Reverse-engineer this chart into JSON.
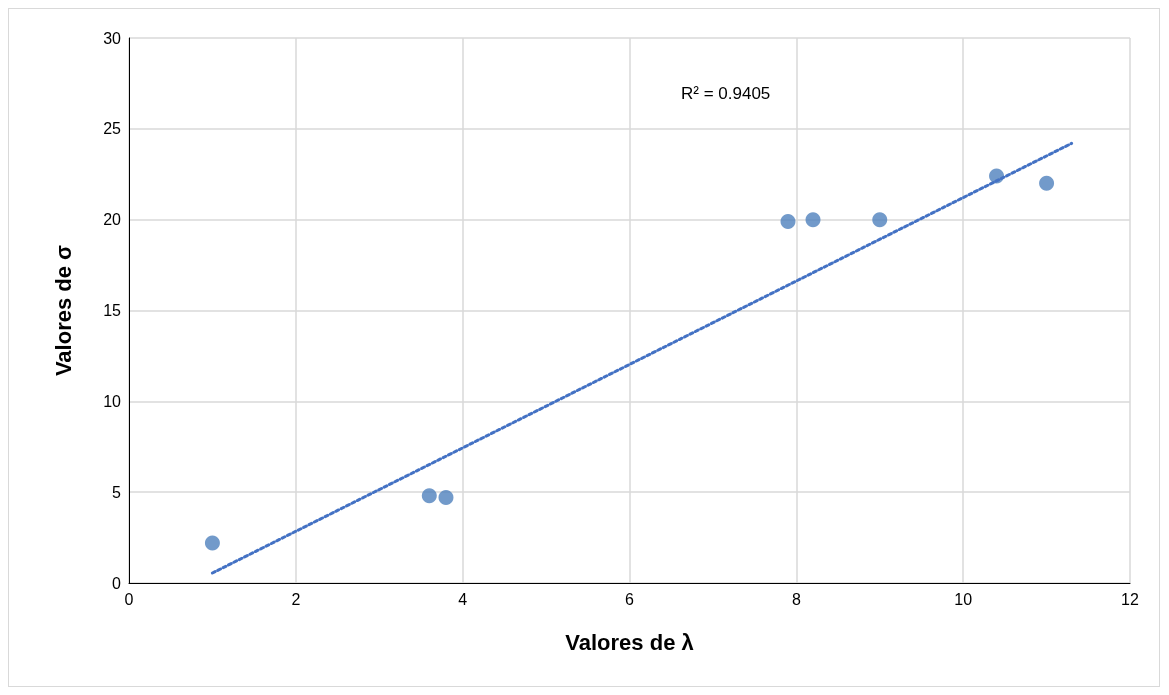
{
  "chart_data": {
    "type": "scatter",
    "xlabel": "Valores de λ",
    "ylabel": "Valores de σ",
    "annotations": [
      "R² = 0.9405"
    ],
    "xlim": [
      0,
      12
    ],
    "xticks": [
      0,
      2,
      4,
      6,
      8,
      10,
      12
    ],
    "ylim": [
      0,
      30
    ],
    "yticks": [
      0,
      5,
      10,
      15,
      20,
      25,
      30
    ],
    "grid": true,
    "marker": "circle",
    "series": [
      {
        "color": "#4f81bd",
        "x": [
          1.0,
          3.6,
          3.8,
          7.9,
          8.2,
          9.0,
          10.4,
          11.0
        ],
        "values": [
          2.2,
          4.8,
          4.7,
          19.9,
          20.0,
          20.0,
          22.4,
          22.0
        ]
      },
      {
        "type": "line",
        "color": "#4472c4",
        "line_style": "dotted",
        "marker": "none",
        "x": [
          1.0,
          11.3
        ],
        "values": [
          0.55,
          24.2
        ]
      }
    ]
  }
}
